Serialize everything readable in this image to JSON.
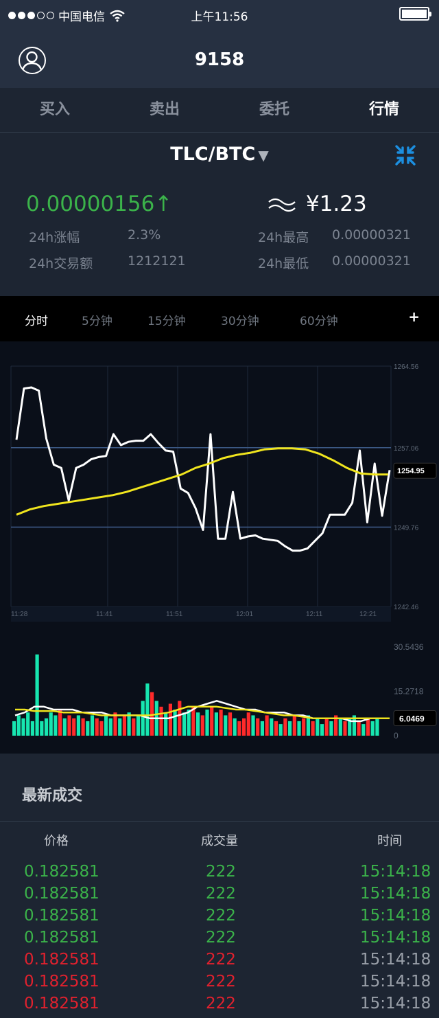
{
  "status_bar": {
    "carrier": "中国电信",
    "time": "上午11:56"
  },
  "nav": {
    "title": "9158"
  },
  "tabs": [
    "买入",
    "卖出",
    "委托",
    "行情"
  ],
  "ticker": {
    "pair": "TLC/BTC",
    "price": "0.00000156",
    "price_arrow": "↑",
    "cny_price": "¥1.23",
    "change_label": "24h涨幅",
    "change_value": "2.3%",
    "high_label": "24h最高",
    "high_value": "0.00000321",
    "volume_label": "24h交易额",
    "volume_value": "1212121",
    "low_label": "24h最低",
    "low_value": "0.00000321"
  },
  "periods": [
    "分时",
    "5分钟",
    "15分钟",
    "30分钟",
    "60分钟"
  ],
  "periods_more": "+",
  "chart_data": [
    {
      "type": "line",
      "x_ticks": [
        "11:28",
        "11:41",
        "11:51",
        "12:01",
        "12:11",
        "12:21"
      ],
      "y_ticks": [
        1264.56,
        1257.06,
        1249.76,
        1242.46
      ],
      "ylim": [
        1242.46,
        1264.56
      ],
      "current_label": "1254.95",
      "series": [
        {
          "color": "#ffffff",
          "values": [
            1257.8,
            1262.5,
            1262.6,
            1262.3,
            1257.9,
            1255.5,
            1255.2,
            1252.2,
            1255.2,
            1255.5,
            1256.0,
            1256.2,
            1256.3,
            1258.3,
            1257.3,
            1257.6,
            1257.7,
            1257.7,
            1258.3,
            1257.5,
            1256.8,
            1256.7,
            1253.3,
            1252.9,
            1251.5,
            1249.5,
            1258.3,
            1248.7,
            1248.7,
            1253.0,
            1248.7,
            1248.9,
            1249.0,
            1248.7,
            1248.6,
            1248.5,
            1248.0,
            1247.6,
            1247.6,
            1247.8,
            1248.5,
            1249.2,
            1250.9,
            1250.9,
            1250.9,
            1252.0,
            1256.8,
            1250.2,
            1255.6,
            1250.8,
            1255.0
          ]
        },
        {
          "color": "#f0e51e",
          "values": [
            1250.9,
            1251.4,
            1251.7,
            1251.9,
            1252.1,
            1252.3,
            1252.5,
            1252.7,
            1253.0,
            1253.4,
            1253.8,
            1254.2,
            1254.6,
            1255.2,
            1255.6,
            1256.1,
            1256.4,
            1256.6,
            1256.9,
            1257.0,
            1257.0,
            1256.9,
            1256.5,
            1255.9,
            1255.2,
            1254.7,
            1254.6,
            1254.6
          ]
        }
      ]
    },
    {
      "type": "bar",
      "y_ticks": [
        30.5436,
        15.2718,
        0
      ],
      "ylim": [
        0,
        30.5436
      ],
      "current_label": "6.0469",
      "values": [
        5,
        7,
        6,
        8,
        5,
        28,
        5,
        6,
        8,
        7,
        9,
        6,
        7,
        6,
        7,
        6,
        5,
        7,
        6,
        5,
        7,
        6,
        8,
        6,
        7,
        8,
        6,
        7,
        12,
        18,
        15,
        12,
        10,
        8,
        11,
        9,
        12,
        8,
        9,
        10,
        8,
        7,
        9,
        10,
        8,
        9,
        7,
        8,
        6,
        5,
        6,
        8,
        7,
        6,
        5,
        7,
        6,
        5,
        4,
        6,
        5,
        7,
        5,
        6,
        7,
        5,
        6,
        4,
        6,
        5,
        7,
        6,
        5,
        6,
        7,
        5,
        4,
        6,
        5,
        6
      ],
      "colors": [
        "g",
        "g",
        "g",
        "g",
        "g",
        "g",
        "g",
        "g",
        "g",
        "g",
        "r",
        "g",
        "r",
        "r",
        "g",
        "r",
        "g",
        "g",
        "r",
        "r",
        "g",
        "g",
        "r",
        "g",
        "r",
        "g",
        "r",
        "g",
        "g",
        "g",
        "r",
        "g",
        "r",
        "g",
        "r",
        "g",
        "r",
        "g",
        "g",
        "r",
        "g",
        "r",
        "g",
        "r",
        "g",
        "r",
        "g",
        "r",
        "g",
        "r",
        "r",
        "r",
        "g",
        "r",
        "g",
        "r",
        "g",
        "r",
        "g",
        "r",
        "g",
        "r",
        "g",
        "r",
        "g",
        "r",
        "g",
        "g",
        "r",
        "g",
        "r",
        "g",
        "r",
        "g",
        "g",
        "r",
        "g",
        "r",
        "g",
        "g"
      ],
      "ma1": [
        7,
        8,
        10,
        10,
        9,
        9,
        9,
        8,
        8,
        8,
        7,
        7,
        7,
        7,
        6,
        6,
        6,
        7,
        8,
        10,
        11,
        12,
        11,
        10,
        9,
        9,
        8,
        8,
        8,
        7,
        7,
        6,
        6,
        6,
        6,
        5,
        5,
        6,
        6,
        6
      ],
      "ma2": [
        9,
        9,
        8.5,
        8.5,
        8.5,
        8,
        8,
        8,
        7.5,
        7,
        7,
        7,
        7,
        7,
        7,
        7.5,
        8,
        9,
        10,
        10,
        10,
        10,
        9.5,
        9,
        9,
        8.5,
        8,
        7.5,
        7,
        7,
        6.5,
        6,
        6,
        6,
        6,
        6,
        6,
        6,
        6,
        6
      ]
    }
  ],
  "trades": {
    "title": "最新成交",
    "headers": {
      "price": "价格",
      "amount": "成交量",
      "time": "时间"
    },
    "rows": [
      {
        "price": "0.182581",
        "amount": "222",
        "time": "15:14:18",
        "side": "buy"
      },
      {
        "price": "0.182581",
        "amount": "222",
        "time": "15:14:18",
        "side": "buy"
      },
      {
        "price": "0.182581",
        "amount": "222",
        "time": "15:14:18",
        "side": "buy"
      },
      {
        "price": "0.182581",
        "amount": "222",
        "time": "15:14:18",
        "side": "buy"
      },
      {
        "price": "0.182581",
        "amount": "222",
        "time": "15:14:18",
        "side": "sell"
      },
      {
        "price": "0.182581",
        "amount": "222",
        "time": "15:14:18",
        "side": "sell"
      },
      {
        "price": "0.182581",
        "amount": "222",
        "time": "15:14:18",
        "side": "sell"
      }
    ]
  },
  "colors": {
    "up": "#3bb34a",
    "down": "#e1212e",
    "bar_up": "#17e6b0",
    "bar_down": "#ff2a2a",
    "ma_yellow": "#f0e51e"
  }
}
